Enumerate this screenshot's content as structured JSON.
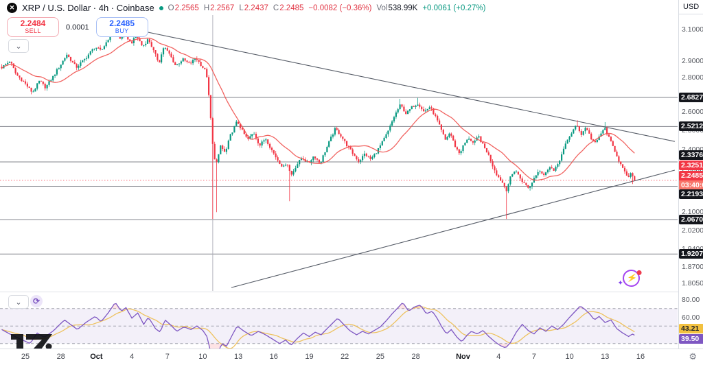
{
  "header": {
    "symbol_title": "XRP / U.S. Dollar · 4h · Coinbase",
    "ohlc": [
      {
        "label": "O",
        "value": "2.2565"
      },
      {
        "label": "H",
        "value": "2.2567"
      },
      {
        "label": "L",
        "value": "2.2437"
      },
      {
        "label": "C",
        "value": "2.2485"
      }
    ],
    "change": "−0.0082 (−0.36%)",
    "vol_label": "Vol",
    "vol_value": "538.99K",
    "vol_change": "+0.0061 (+0.27%)"
  },
  "trade_widget": {
    "sell_price": "2.2484",
    "sell_label": "SELL",
    "spread": "0.0001",
    "buy_price": "2.2485",
    "buy_label": "BUY"
  },
  "controls": {
    "main_collapse": "⌄",
    "rsi_collapse": "⌄",
    "rsi_refresh_icon": "⟳",
    "axis_settings_icon": "⚙",
    "flash_bolt": "⚡",
    "flash_spark": "✦",
    "close_icon": "✕"
  },
  "price_axis": {
    "currency": "USD",
    "ticks": [
      "3.1000",
      "2.9000",
      "2.8000",
      "2.6000",
      "2.5000",
      "2.4000",
      "2.3000",
      "2.1000",
      "2.0200",
      "1.9400",
      "1.8700",
      "1.8050"
    ],
    "level_badges": [
      "2.6827",
      "2.5212",
      "2.3376",
      "2.2193",
      "2.0670",
      "1.9207"
    ],
    "ma_badge": "2.3251",
    "last_price_badge": "2.2485",
    "countdown": "03:40:00"
  },
  "rsi_axis": {
    "ticks": [
      "80.00",
      "60.00"
    ],
    "ma_badge": "43.21",
    "line_badge": "39.50"
  },
  "colors": {
    "up": "#089981",
    "down": "#f23645",
    "ma": "#ef5350",
    "buy_accent": "#2962ff",
    "sell_accent": "#f23645",
    "rsi_line": "#7e57c2",
    "rsi_signal": "#eec25f",
    "rsi_band": "rgba(126,87,194,0.09)",
    "rsi_zone_fill": "rgba(242,54,69,0.14)",
    "level_line": "#62656f",
    "trend_line": "#555b66",
    "last_price_line": "#f7525f",
    "countdown_bg": "#f8766b",
    "badge_black": "#14161c",
    "badge_yellow": "#f2c140",
    "badge_purple": "#7e57c2"
  },
  "chart_data": {
    "type": "candlestick",
    "title": "XRP / U.S. Dollar · 4h · Coinbase",
    "price_scale_mode": "log",
    "day0_date": "Sep 23",
    "candles_per_day": 6,
    "last_day": 53.5,
    "last_price": 2.2485,
    "ma_value": 2.3251,
    "levels": [
      2.6827,
      2.5212,
      2.3376,
      2.2193,
      2.067,
      1.9207
    ],
    "price_ticks": [
      3.1,
      2.9,
      2.8,
      2.6,
      2.5,
      2.4,
      2.3,
      2.1,
      2.02,
      1.94,
      1.87,
      1.805
    ],
    "time_ticks": [
      {
        "t": "25",
        "d": 2
      },
      {
        "t": "28",
        "d": 5
      },
      {
        "t": "Oct",
        "d": 8,
        "m": true
      },
      {
        "t": "4",
        "d": 11
      },
      {
        "t": "7",
        "d": 14
      },
      {
        "t": "10",
        "d": 17
      },
      {
        "t": "13",
        "d": 20
      },
      {
        "t": "16",
        "d": 23
      },
      {
        "t": "19",
        "d": 26
      },
      {
        "t": "22",
        "d": 29
      },
      {
        "t": "25",
        "d": 32
      },
      {
        "t": "28",
        "d": 35
      },
      {
        "t": "Nov",
        "d": 39,
        "m": true
      },
      {
        "t": "4",
        "d": 42
      },
      {
        "t": "7",
        "d": 45
      },
      {
        "t": "10",
        "d": 48
      },
      {
        "t": "13",
        "d": 51
      },
      {
        "t": "16",
        "d": 54
      }
    ],
    "close_path": [
      [
        0,
        2.86
      ],
      [
        0.7,
        2.9
      ],
      [
        1.2,
        2.82
      ],
      [
        1.9,
        2.77
      ],
      [
        2.6,
        2.71
      ],
      [
        3.2,
        2.78
      ],
      [
        3.7,
        2.74
      ],
      [
        4.3,
        2.8
      ],
      [
        5.0,
        2.88
      ],
      [
        5.5,
        2.94
      ],
      [
        6.3,
        2.86
      ],
      [
        7.0,
        2.91
      ],
      [
        7.9,
        2.99
      ],
      [
        8.4,
        2.96
      ],
      [
        9.0,
        3.04
      ],
      [
        9.6,
        3.1
      ],
      [
        10.0,
        3.04
      ],
      [
        10.4,
        3.08
      ],
      [
        10.9,
        3.01
      ],
      [
        11.4,
        3.06
      ],
      [
        11.9,
        2.99
      ],
      [
        12.4,
        3.04
      ],
      [
        12.9,
        2.95
      ],
      [
        13.3,
        2.89
      ],
      [
        13.7,
        2.99
      ],
      [
        14.2,
        2.94
      ],
      [
        14.7,
        2.87
      ],
      [
        15.3,
        2.91
      ],
      [
        15.9,
        2.88
      ],
      [
        16.4,
        2.92
      ],
      [
        16.9,
        2.87
      ],
      [
        17.3,
        2.83
      ],
      [
        17.6,
        2.62
      ],
      [
        17.9,
        2.37
      ],
      [
        18.2,
        2.33
      ],
      [
        18.5,
        2.42
      ],
      [
        18.9,
        2.38
      ],
      [
        19.3,
        2.47
      ],
      [
        19.9,
        2.55
      ],
      [
        20.4,
        2.49
      ],
      [
        20.8,
        2.45
      ],
      [
        21.3,
        2.49
      ],
      [
        21.8,
        2.42
      ],
      [
        22.3,
        2.46
      ],
      [
        22.8,
        2.4
      ],
      [
        23.3,
        2.35
      ],
      [
        23.8,
        2.31
      ],
      [
        24.1,
        2.34
      ],
      [
        24.45,
        2.27
      ],
      [
        24.9,
        2.32
      ],
      [
        25.4,
        2.36
      ],
      [
        25.9,
        2.33
      ],
      [
        26.4,
        2.37
      ],
      [
        26.9,
        2.33
      ],
      [
        27.4,
        2.4
      ],
      [
        27.9,
        2.47
      ],
      [
        28.2,
        2.51
      ],
      [
        28.7,
        2.47
      ],
      [
        29.2,
        2.42
      ],
      [
        29.8,
        2.37
      ],
      [
        30.2,
        2.34
      ],
      [
        30.7,
        2.38
      ],
      [
        31.2,
        2.35
      ],
      [
        31.7,
        2.39
      ],
      [
        32.2,
        2.44
      ],
      [
        32.7,
        2.5
      ],
      [
        33.2,
        2.58
      ],
      [
        33.7,
        2.64
      ],
      [
        34.2,
        2.59
      ],
      [
        34.7,
        2.63
      ],
      [
        35.2,
        2.65
      ],
      [
        35.7,
        2.6
      ],
      [
        36.2,
        2.63
      ],
      [
        36.7,
        2.57
      ],
      [
        37.1,
        2.51
      ],
      [
        37.5,
        2.45
      ],
      [
        37.9,
        2.49
      ],
      [
        38.3,
        2.42
      ],
      [
        38.7,
        2.38
      ],
      [
        39.1,
        2.43
      ],
      [
        39.5,
        2.46
      ],
      [
        39.9,
        2.43
      ],
      [
        40.3,
        2.47
      ],
      [
        40.7,
        2.42
      ],
      [
        41.1,
        2.38
      ],
      [
        41.5,
        2.32
      ],
      [
        41.9,
        2.27
      ],
      [
        42.3,
        2.24
      ],
      [
        42.65,
        2.2
      ],
      [
        43.0,
        2.26
      ],
      [
        43.4,
        2.3
      ],
      [
        43.8,
        2.26
      ],
      [
        44.2,
        2.23
      ],
      [
        44.6,
        2.21
      ],
      [
        45.0,
        2.26
      ],
      [
        45.4,
        2.3
      ],
      [
        45.9,
        2.27
      ],
      [
        46.3,
        2.32
      ],
      [
        46.7,
        2.29
      ],
      [
        47.1,
        2.34
      ],
      [
        47.5,
        2.4
      ],
      [
        47.9,
        2.46
      ],
      [
        48.3,
        2.5
      ],
      [
        48.6,
        2.53
      ],
      [
        49.0,
        2.48
      ],
      [
        49.4,
        2.52
      ],
      [
        49.8,
        2.46
      ],
      [
        50.2,
        2.43
      ],
      [
        50.6,
        2.48
      ],
      [
        51.0,
        2.51
      ],
      [
        51.4,
        2.45
      ],
      [
        51.8,
        2.4
      ],
      [
        52.2,
        2.34
      ],
      [
        52.6,
        2.29
      ],
      [
        53.0,
        2.26
      ],
      [
        53.25,
        2.285
      ],
      [
        53.5,
        2.2485
      ]
    ],
    "wick_lows": [
      [
        17.9,
        2.07
      ],
      [
        18.15,
        2.1
      ],
      [
        24.4,
        2.15
      ],
      [
        42.6,
        2.07
      ],
      [
        53.3,
        2.23
      ]
    ],
    "wick_highs": [
      [
        9.6,
        3.135
      ],
      [
        33.7,
        2.675
      ],
      [
        35.2,
        2.68
      ],
      [
        48.6,
        2.555
      ],
      [
        51.0,
        2.545
      ]
    ],
    "trendlines": [
      {
        "name": "descending-resistance",
        "d1": 9.84,
        "p1": 3.124,
        "d2": 56.9,
        "p2": 2.442
      },
      {
        "name": "ascending-support",
        "d1": 19.41,
        "p1": 1.788,
        "d2": 56.9,
        "p2": 2.297
      }
    ],
    "vertical_line_day": 17.84,
    "rsi": {
      "levels": [
        70,
        50,
        30
      ],
      "last": 39.5,
      "ma_last": 43.21,
      "path": [
        [
          0,
          46
        ],
        [
          0.8,
          40
        ],
        [
          1.6,
          35
        ],
        [
          2.4,
          30
        ],
        [
          3.0,
          42
        ],
        [
          3.6,
          37
        ],
        [
          4.4,
          45
        ],
        [
          5.3,
          57
        ],
        [
          6.0,
          50
        ],
        [
          6.4,
          46
        ],
        [
          7.1,
          54
        ],
        [
          7.9,
          61
        ],
        [
          8.4,
          55
        ],
        [
          9.0,
          65
        ],
        [
          9.6,
          77
        ],
        [
          10.1,
          67
        ],
        [
          10.5,
          71
        ],
        [
          11.0,
          59
        ],
        [
          11.5,
          65
        ],
        [
          12.0,
          52
        ],
        [
          12.4,
          60
        ],
        [
          13.0,
          47
        ],
        [
          13.4,
          43
        ],
        [
          13.8,
          57
        ],
        [
          14.3,
          51
        ],
        [
          14.8,
          44
        ],
        [
          15.4,
          49
        ],
        [
          16.0,
          46
        ],
        [
          16.5,
          50
        ],
        [
          17.0,
          45
        ],
        [
          17.35,
          38
        ],
        [
          17.7,
          18
        ],
        [
          18.0,
          12
        ],
        [
          18.3,
          20
        ],
        [
          18.6,
          30
        ],
        [
          19.0,
          27
        ],
        [
          19.5,
          40
        ],
        [
          19.9,
          50
        ],
        [
          20.5,
          44
        ],
        [
          21.1,
          39
        ],
        [
          21.7,
          44
        ],
        [
          22.3,
          40
        ],
        [
          22.9,
          35
        ],
        [
          23.5,
          30
        ],
        [
          24.0,
          34
        ],
        [
          24.45,
          28
        ],
        [
          25.0,
          36
        ],
        [
          25.5,
          42
        ],
        [
          26.0,
          38
        ],
        [
          26.5,
          43
        ],
        [
          27.0,
          40
        ],
        [
          27.5,
          47
        ],
        [
          28.1,
          55
        ],
        [
          28.4,
          59
        ],
        [
          28.9,
          52
        ],
        [
          29.4,
          45
        ],
        [
          30.0,
          40
        ],
        [
          30.5,
          44
        ],
        [
          31.0,
          41
        ],
        [
          31.5,
          45
        ],
        [
          32.0,
          49
        ],
        [
          32.5,
          56
        ],
        [
          33.0,
          64
        ],
        [
          33.5,
          71
        ],
        [
          33.9,
          77
        ],
        [
          34.4,
          67
        ],
        [
          34.9,
          72
        ],
        [
          35.4,
          74
        ],
        [
          35.9,
          64
        ],
        [
          36.4,
          67
        ],
        [
          36.8,
          59
        ],
        [
          37.2,
          49
        ],
        [
          37.6,
          41
        ],
        [
          38.0,
          46
        ],
        [
          38.5,
          37
        ],
        [
          38.9,
          32
        ],
        [
          39.3,
          39
        ],
        [
          39.7,
          44
        ],
        [
          40.2,
          41
        ],
        [
          40.7,
          45
        ],
        [
          41.1,
          39
        ],
        [
          41.6,
          33
        ],
        [
          42.1,
          28
        ],
        [
          42.6,
          25
        ],
        [
          43.0,
          31
        ],
        [
          43.5,
          43
        ],
        [
          44.0,
          52
        ],
        [
          44.5,
          45
        ],
        [
          45.0,
          41
        ],
        [
          45.5,
          48
        ],
        [
          46.0,
          44
        ],
        [
          46.5,
          50
        ],
        [
          47.0,
          46
        ],
        [
          47.5,
          52
        ],
        [
          48.0,
          60
        ],
        [
          48.5,
          67
        ],
        [
          48.9,
          73
        ],
        [
          49.3,
          69
        ],
        [
          49.7,
          64
        ],
        [
          50.1,
          57
        ],
        [
          50.5,
          61
        ],
        [
          51.0,
          54
        ],
        [
          51.5,
          57
        ],
        [
          52.0,
          47
        ],
        [
          52.5,
          42
        ],
        [
          53.0,
          38
        ],
        [
          53.3,
          41
        ],
        [
          53.5,
          39.5
        ]
      ]
    }
  }
}
